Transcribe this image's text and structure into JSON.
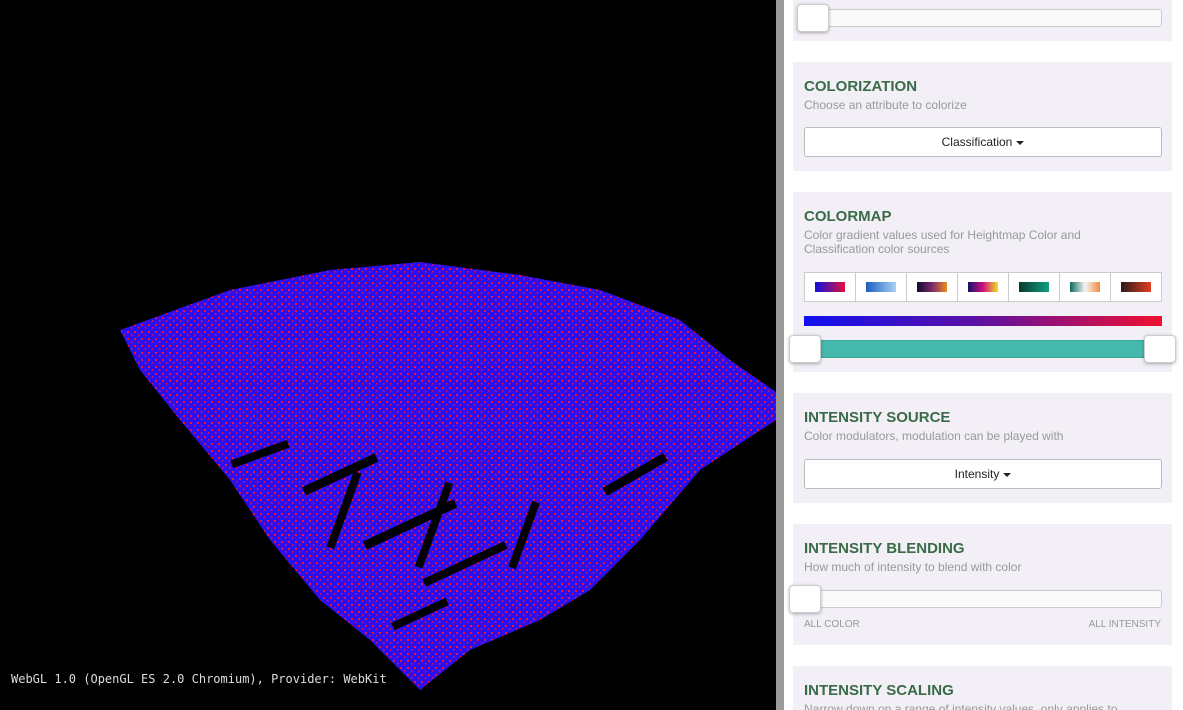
{
  "viewport": {
    "status": "WebGL 1.0 (OpenGL ES 2.0 Chromium), Provider: WebKit"
  },
  "sections": [
    {
      "title": "COLORIZATION",
      "description": "Choose an attribute to colorize",
      "dropdown": "Classification"
    },
    {
      "title": "COLORMAP",
      "description": "Color gradient values used for Heightmap Color and Classification color sources"
    },
    {
      "title": "INTENSITY SOURCE",
      "description": "Color modulators, modulation can be played with",
      "dropdown": "Intensity"
    },
    {
      "title": "INTENSITY BLENDING",
      "description": "How much of intensity to blend with color",
      "min_label": "ALL COLOR",
      "max_label": "ALL INTENSITY"
    },
    {
      "title": "INTENSITY SCALING",
      "description": "Narrow down on a range of intensity values, only applies to"
    }
  ]
}
